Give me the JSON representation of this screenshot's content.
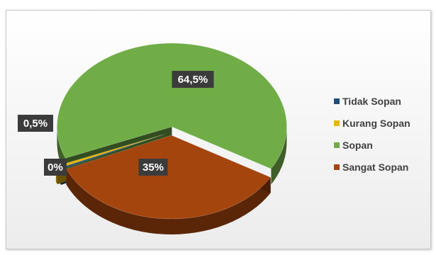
{
  "chart_data": {
    "type": "pie",
    "title": "",
    "categories": [
      "Tidak Sopan",
      "Kurang Sopan",
      "Sopan",
      "Sangat Sopan"
    ],
    "values": [
      0,
      0.5,
      64.5,
      35
    ],
    "data_labels": [
      "0%",
      "0,5%",
      "64,5%",
      "35%"
    ],
    "colors": [
      "#1f4e79",
      "#e8b400",
      "#70ad47",
      "#a5450e"
    ],
    "legend": {
      "position": "right",
      "entries": [
        "Tidak Sopan",
        "Kurang Sopan",
        "Sopan",
        "Sangat Sopan"
      ]
    },
    "style": "3d-exploded"
  }
}
